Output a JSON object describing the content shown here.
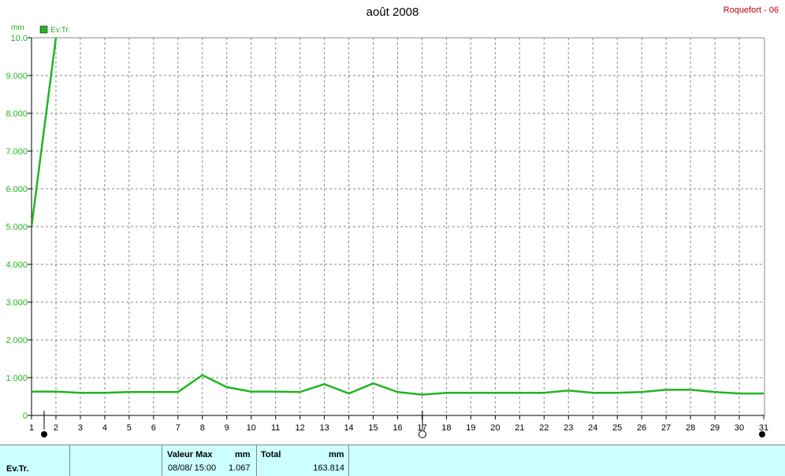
{
  "chart_data": {
    "type": "line",
    "title": "août 2008",
    "station": "Roquefort - 06",
    "y_unit": "mm",
    "x": [
      1,
      2,
      3,
      4,
      5,
      6,
      7,
      8,
      9,
      10,
      11,
      12,
      13,
      14,
      15,
      16,
      17,
      18,
      19,
      20,
      21,
      22,
      23,
      24,
      25,
      26,
      27,
      28,
      29,
      30,
      31
    ],
    "xlim": [
      1,
      31
    ],
    "xticks": [
      1,
      2,
      3,
      4,
      5,
      6,
      7,
      8,
      9,
      10,
      11,
      12,
      13,
      14,
      15,
      16,
      17,
      18,
      19,
      20,
      21,
      22,
      23,
      24,
      25,
      26,
      27,
      28,
      29,
      30,
      31
    ],
    "ylim": [
      0,
      10
    ],
    "yticks": [
      0,
      {
        "value": 1,
        "label": "1.000"
      },
      {
        "value": 2,
        "label": "2.000"
      },
      {
        "value": 3,
        "label": "3.000"
      },
      {
        "value": 4,
        "label": "4.000"
      },
      {
        "value": 5,
        "label": "5.000"
      },
      {
        "value": 6,
        "label": "6.000"
      },
      {
        "value": 7,
        "label": "7.000"
      },
      {
        "value": 8,
        "label": "8.000"
      },
      {
        "value": 9,
        "label": "9.000"
      },
      {
        "value": 10,
        "label": "10.0"
      }
    ],
    "grid": true,
    "series": [
      {
        "name": "Ev.Tr.",
        "color": "#22b422",
        "values": [
          0.63,
          0.63,
          0.6,
          0.6,
          0.62,
          0.62,
          0.62,
          1.067,
          0.75,
          0.63,
          0.63,
          0.62,
          0.83,
          0.58,
          0.85,
          0.62,
          0.55,
          0.6,
          0.6,
          0.6,
          0.6,
          0.6,
          0.66,
          0.6,
          0.6,
          0.62,
          0.68,
          0.68,
          0.62,
          0.58,
          0.58
        ]
      },
      {
        "color": "#22b422",
        "values": [
          5.0,
          10,
          null,
          null,
          null,
          null,
          null,
          null,
          null,
          null,
          null,
          null,
          null,
          null,
          null,
          null,
          null,
          null,
          null,
          null,
          null,
          null,
          null,
          null,
          null,
          null,
          null,
          null,
          null,
          null,
          null
        ]
      }
    ]
  },
  "footer": {
    "name": "Ev.Tr.",
    "max_label": "Valeur Max",
    "max_unit": "mm",
    "max_date": "08/08/ 15:00",
    "max_value": "1.067",
    "total_label": "Total",
    "total_unit": "mm",
    "total_value": "163.814"
  }
}
